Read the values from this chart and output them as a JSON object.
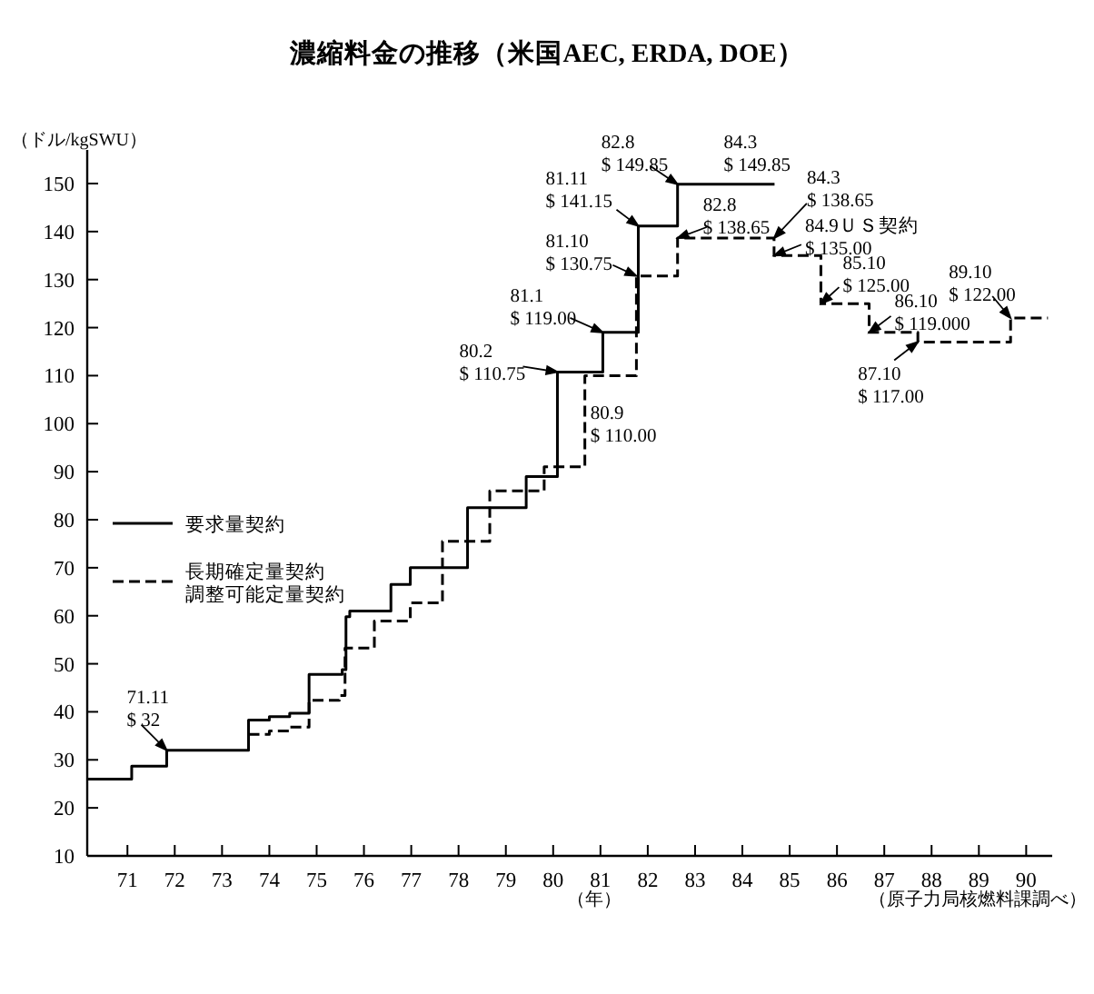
{
  "chart_data": {
    "type": "step",
    "title": "濃縮料金の推移（米国AEC, ERDA, DOE）",
    "xlabel": "（年）",
    "ylabel": "（ドル/kgSWU）",
    "xlim": [
      70.15,
      90.55
    ],
    "ylim": [
      10,
      157
    ],
    "xticks": [
      71,
      72,
      73,
      74,
      75,
      76,
      77,
      78,
      79,
      80,
      81,
      82,
      83,
      84,
      85,
      86,
      87,
      88,
      89,
      90
    ],
    "yticks": [
      10,
      20,
      30,
      40,
      50,
      60,
      70,
      80,
      90,
      100,
      110,
      120,
      130,
      140,
      150
    ],
    "legend": "left",
    "series": [
      {
        "name": "要求量契約",
        "color": "#000000",
        "line_style": "solid",
        "x": [
          70.15,
          71.09,
          71.83,
          73.56,
          74.0,
          74.43,
          74.84,
          75.54,
          75.62,
          75.7,
          76.57,
          76.98,
          78.19,
          79.43,
          80.09,
          81.05,
          81.8,
          82.63,
          84.68
        ],
        "values": [
          26,
          28.7,
          32,
          38.3,
          39,
          39.7,
          47.8,
          48.8,
          59.8,
          61,
          66.5,
          70,
          82.5,
          89,
          110.75,
          119,
          141.15,
          149.85,
          149.85
        ]
      },
      {
        "name": "長期確定量契約調整可能定量契約",
        "color": "#000000",
        "line_style": "dashed",
        "x": [
          73.56,
          74.0,
          74.43,
          74.84,
          75.48,
          75.6,
          76.22,
          76.98,
          77.66,
          78.66,
          79.81,
          80.67,
          81.76,
          82.63,
          84.67,
          85.66,
          86.68,
          87.71,
          89.67,
          90.46
        ],
        "values": [
          35.3,
          36,
          36.8,
          42.4,
          43.4,
          53.3,
          58.9,
          62.7,
          75.5,
          86,
          91,
          110,
          130.75,
          138.65,
          135,
          125,
          119,
          117,
          122,
          122
        ]
      }
    ],
    "annotations": [
      {
        "text": "71.11\n$ 32",
        "x": 71.83,
        "y": 32
      },
      {
        "text": "80.2\n$ 110.75",
        "x": 80.09,
        "y": 110.75
      },
      {
        "text": "81.1\n$ 119.00",
        "x": 81.05,
        "y": 119
      },
      {
        "text": "81.10\n$ 130.75",
        "x": 81.76,
        "y": 130.75
      },
      {
        "text": "81.11\n$ 141.15",
        "x": 81.8,
        "y": 141.15
      },
      {
        "text": "82.8\n$ 149.85",
        "x": 82.63,
        "y": 149.85
      },
      {
        "text": "84.3\n$ 149.85",
        "x": 84.68,
        "y": 149.85
      },
      {
        "text": "82.8\n$ 138.65",
        "x": 82.63,
        "y": 138.65
      },
      {
        "text": "84.3\n$ 138.65",
        "x": 84.67,
        "y": 138.65
      },
      {
        "text": "84.9ＵＳ契約\n$ 135.00",
        "x": 84.67,
        "y": 135
      },
      {
        "text": "85.10\n$ 125.00",
        "x": 85.66,
        "y": 125
      },
      {
        "text": "86.10\n$ 119.000",
        "x": 86.68,
        "y": 119
      },
      {
        "text": "87.10\n$ 117.00",
        "x": 87.71,
        "y": 117
      },
      {
        "text": "89.10\n$ 122.00",
        "x": 89.67,
        "y": 122
      },
      {
        "text": "80.9\n$ 110.00",
        "x": 80.67,
        "y": 110
      },
      "（原子力局核燃料課調べ）"
    ]
  }
}
